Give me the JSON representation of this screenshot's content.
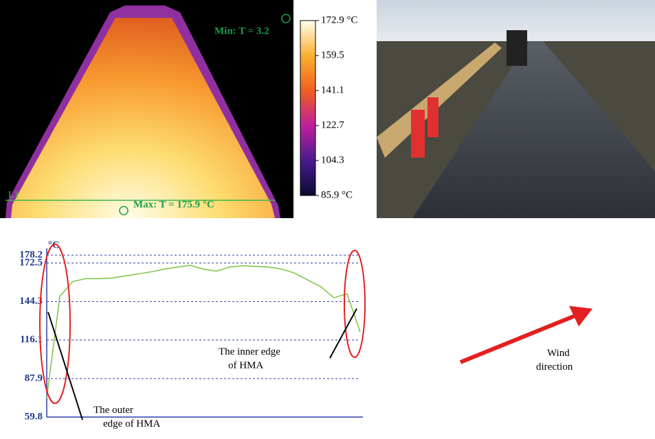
{
  "thermal": {
    "min_label": "Min: T = 3.2",
    "max_label": "Max: T = 175.9 °C",
    "line_label": "L1",
    "colorbar_labels": [
      "172.9 °C",
      "159.5",
      "141.1",
      "122.7",
      "104.3",
      "85.9 °C"
    ]
  },
  "chart_data": {
    "type": "line",
    "y_unit": "°C",
    "series": [
      {
        "name": null,
        "color": "#7cc242",
        "values": [
          73.8,
          148,
          159,
          161,
          161,
          161.5,
          163,
          164.5,
          166,
          168,
          169.5,
          170.8,
          168,
          166.5,
          169.5,
          170.5,
          170,
          169.5,
          168,
          165,
          160,
          155,
          147,
          150,
          122
        ]
      }
    ],
    "ylim": [
      59.8,
      178.2
    ],
    "yticks": [
      59.8,
      87.9,
      116.1,
      144.3,
      172.5,
      178.2
    ],
    "grid": true,
    "annotations": [
      "The outer edge of HMA",
      "The inner edge of HMA",
      "Wind direction"
    ]
  }
}
